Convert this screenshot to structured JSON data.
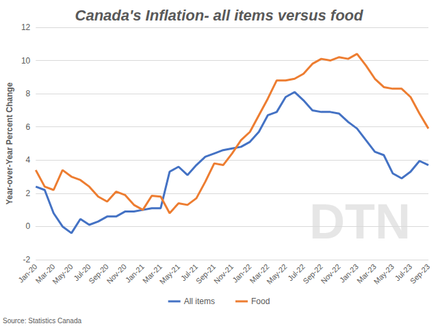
{
  "chart_data": {
    "type": "line",
    "title": "Canada's Inflation- all items versus food",
    "y_label": "Year-over-Year Percent Change",
    "source": "Source: Statistics Canada",
    "watermark": "DTN",
    "categories": [
      "Jan-20",
      null,
      "Mar-20",
      null,
      "May-20",
      null,
      "Jul-20",
      null,
      "Sep-20",
      null,
      "Nov-20",
      null,
      "Jan-21",
      null,
      "Mar-21",
      null,
      "May-21",
      null,
      "Jul-21",
      null,
      "Sep-21",
      null,
      "Nov-21",
      null,
      "Jan-22",
      null,
      "Mar-22",
      null,
      "May-22",
      null,
      "Jul-22",
      null,
      "Sep-22",
      null,
      "Nov-22",
      null,
      "Jan-23",
      null,
      "Mar-23",
      null,
      "May-23",
      null,
      "Jul-23",
      null,
      "Sep-23"
    ],
    "series": [
      {
        "name": "All items",
        "color": "#4472c4",
        "values": [
          2.4,
          2.2,
          0.8,
          0.0,
          -0.4,
          0.45,
          0.1,
          0.3,
          0.6,
          0.6,
          0.9,
          0.9,
          1.0,
          1.1,
          1.1,
          3.3,
          3.6,
          3.1,
          3.7,
          4.2,
          4.4,
          4.6,
          4.7,
          4.8,
          5.1,
          5.7,
          6.7,
          6.9,
          7.8,
          8.1,
          7.6,
          7.0,
          6.9,
          6.9,
          6.8,
          6.3,
          5.9,
          5.2,
          4.5,
          4.3,
          3.2,
          2.9,
          3.3,
          3.95,
          3.7
        ]
      },
      {
        "name": "Food",
        "color": "#ed7d31",
        "values": [
          3.4,
          2.4,
          2.2,
          3.4,
          3.0,
          2.8,
          2.4,
          1.8,
          1.5,
          2.1,
          1.9,
          1.3,
          1.0,
          1.85,
          1.8,
          0.8,
          1.4,
          1.3,
          1.7,
          2.7,
          3.8,
          3.7,
          4.4,
          5.2,
          5.7,
          6.7,
          7.7,
          8.8,
          8.8,
          8.9,
          9.2,
          9.8,
          10.1,
          10.0,
          10.2,
          10.1,
          10.4,
          9.7,
          8.9,
          8.4,
          8.3,
          8.3,
          7.8,
          6.8,
          5.9
        ]
      }
    ],
    "ylim": [
      -2,
      12
    ],
    "yticks": [
      -2,
      0,
      2,
      4,
      6,
      8,
      10,
      12
    ],
    "grid": true,
    "legend": "bottom"
  }
}
